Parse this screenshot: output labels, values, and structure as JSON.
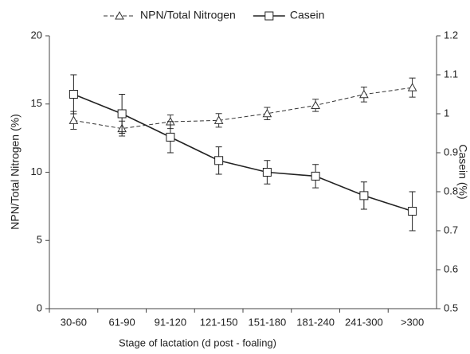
{
  "chart_data": {
    "type": "line",
    "x_label": "Stage of lactation (d post - foaling)",
    "y_label": "NPN/Total Nitrogen (%)",
    "y2_label": "Casein (%)",
    "categories": [
      "30-60",
      "61-90",
      "91-120",
      "121-150",
      "151-180",
      "181-240",
      "241-300",
      ">300"
    ],
    "ylim": [
      0,
      20
    ],
    "yticks": [
      0,
      5,
      10,
      15,
      20
    ],
    "y2lim": [
      0.5,
      1.2
    ],
    "y2ticks": [
      0.5,
      0.6,
      0.7,
      0.8,
      0.9,
      1,
      1.1,
      1.2
    ],
    "series": [
      {
        "name": "NPN/Total Nitrogen",
        "color": "#333333",
        "line_style": "dashed",
        "marker": "triangle",
        "values": [
          13.8,
          13.2,
          13.7,
          13.8,
          14.3,
          14.9,
          15.7,
          16.2
        ],
        "errors": [
          0.65,
          0.55,
          0.5,
          0.5,
          0.45,
          0.45,
          0.55,
          0.7
        ]
      },
      {
        "name": "Casein",
        "color": "#222222",
        "line_style": "solid",
        "marker": "square",
        "axis": "y2",
        "values": [
          1.05,
          1.0,
          0.94,
          0.88,
          0.85,
          0.84,
          0.79,
          0.75
        ],
        "errors": [
          0.05,
          0.05,
          0.04,
          0.035,
          0.03,
          0.03,
          0.035,
          0.05
        ]
      }
    ]
  }
}
